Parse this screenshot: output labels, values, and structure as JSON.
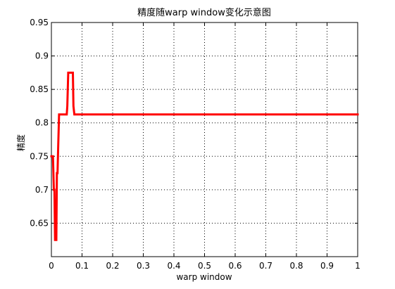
{
  "chart_data": {
    "type": "line",
    "title": "精度随warp window变化示意图",
    "xlabel": "warp window",
    "ylabel": "精度",
    "xlim": [
      0,
      1
    ],
    "ylim": [
      0.6,
      0.95
    ],
    "xticks": [
      0,
      0.1,
      0.2,
      0.3,
      0.4,
      0.5,
      0.6,
      0.7,
      0.8,
      0.9,
      1
    ],
    "xtick_labels": [
      "0",
      "0.1",
      "0.2",
      "0.3",
      "0.4",
      "0.5",
      "0.6",
      "0.7",
      "0.8",
      "0.9",
      "1"
    ],
    "yticks": [
      0.65,
      0.7,
      0.75,
      0.8,
      0.85,
      0.9,
      0.95
    ],
    "ytick_labels": [
      "0.65",
      "0.7",
      "0.75",
      "0.8",
      "0.85",
      "0.9",
      "0.95"
    ],
    "grid": true,
    "line_color": "#ff0000",
    "series": [
      {
        "x": [
          0,
          0.005,
          0.008,
          0.01,
          0.012,
          0.014,
          0.016,
          0.018,
          0.02,
          0.022,
          0.025,
          0.03,
          0.04,
          0.05,
          0.052,
          0.055,
          0.06,
          0.065,
          0.07,
          0.072,
          0.075,
          0.08,
          0.1,
          0.2,
          0.3,
          0.4,
          0.5,
          0.6,
          0.7,
          0.8,
          0.9,
          1.0
        ],
        "y": [
          0.75,
          0.75,
          0.7,
          0.7,
          0.625,
          0.625,
          0.625,
          0.725,
          0.725,
          0.7625,
          0.8125,
          0.8125,
          0.8125,
          0.8125,
          0.825,
          0.875,
          0.875,
          0.875,
          0.875,
          0.825,
          0.8125,
          0.8125,
          0.8125,
          0.8125,
          0.8125,
          0.8125,
          0.8125,
          0.8125,
          0.8125,
          0.8125,
          0.8125,
          0.8125
        ]
      }
    ]
  }
}
